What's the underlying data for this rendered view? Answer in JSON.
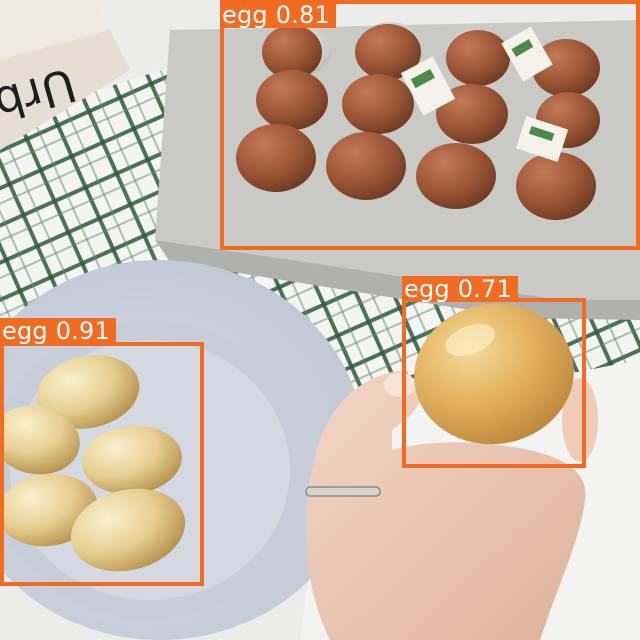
{
  "image": {
    "box_text": "Urb",
    "detections": [
      {
        "label": "egg",
        "score": "0.81",
        "color": "#f26b23"
      },
      {
        "label": "egg",
        "score": "0.91",
        "color": "#f26b23"
      },
      {
        "label": "egg",
        "score": "0.71",
        "color": "#f26b23"
      }
    ]
  }
}
